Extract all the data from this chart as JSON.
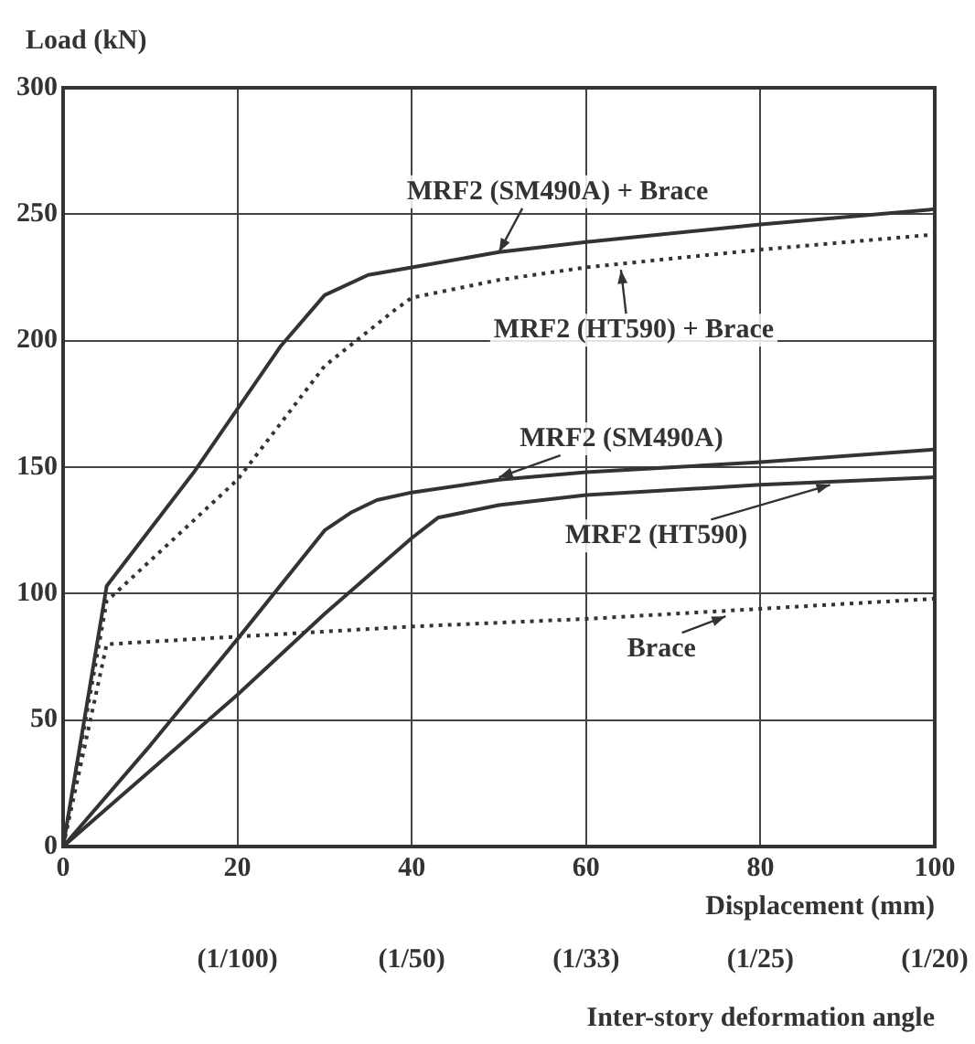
{
  "chart_data": {
    "type": "line",
    "ylabel": "Load (kN)",
    "xlabel": "Displacement (mm)",
    "xlim": [
      0,
      100
    ],
    "xticks": [
      0,
      20,
      40,
      60,
      80,
      100
    ],
    "ylim": [
      0,
      300
    ],
    "yticks": [
      0,
      50,
      100,
      150,
      200,
      250,
      300
    ],
    "grid": true,
    "legend": false,
    "marker": "none",
    "series": [
      {
        "color": "#333333",
        "line_style": "solid",
        "x": [
          0,
          5,
          15,
          25,
          30,
          35,
          40,
          50,
          60,
          80,
          100
        ],
        "values": [
          0,
          103,
          148,
          198,
          218,
          226,
          229,
          235,
          239,
          246,
          252
        ]
      },
      {
        "color": "#333333",
        "line_style": "dotted",
        "x": [
          0,
          5,
          20,
          30,
          38,
          40,
          50,
          60,
          80,
          100
        ],
        "values": [
          0,
          97,
          145,
          190,
          212,
          217,
          224,
          229,
          236,
          242
        ]
      },
      {
        "color": "#333333",
        "line_style": "solid",
        "x": [
          0,
          10,
          20,
          30,
          33,
          36,
          40,
          50,
          60,
          80,
          100
        ],
        "values": [
          0,
          40,
          82,
          125,
          132,
          137,
          140,
          145,
          148,
          152,
          157
        ]
      },
      {
        "color": "#333333",
        "line_style": "solid",
        "x": [
          0,
          10,
          20,
          30,
          40,
          43,
          50,
          60,
          80,
          100
        ],
        "values": [
          0,
          30,
          60,
          92,
          122,
          130,
          135,
          139,
          143,
          146
        ]
      },
      {
        "color": "#333333",
        "line_style": "dotted",
        "x": [
          0,
          5,
          20,
          40,
          60,
          80,
          100
        ],
        "values": [
          0,
          80,
          83,
          87,
          90,
          94,
          98
        ]
      }
    ],
    "annotations": [
      {
        "text": "MRF2 (SM490A) + Brace",
        "x": 50,
        "y": 235
      },
      {
        "text": "MRF2 (HT590) + Brace",
        "x": 64,
        "y": 228
      },
      {
        "text": "MRF2 (SM490A)",
        "x": 50,
        "y": 146
      },
      {
        "text": "MRF2 (HT590)",
        "x": 88,
        "y": 143
      },
      {
        "text": "Brace",
        "x": 76,
        "y": 91
      },
      "(1/100)",
      "(1/50)",
      "(1/33)",
      "(1/25)",
      "(1/20)",
      "Inter-story deformation angle"
    ]
  }
}
